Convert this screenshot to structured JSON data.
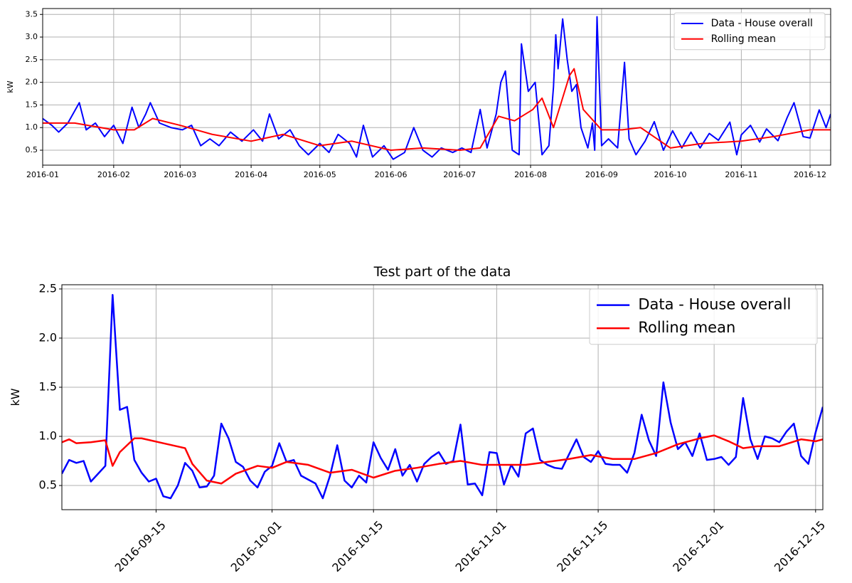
{
  "chart_data": [
    {
      "type": "line",
      "ylabel": "kW",
      "grid": true,
      "legend": "upper right",
      "xlim": [
        "2016-01-01",
        "2016-12-10"
      ],
      "ylim": [
        0.17,
        3.63
      ],
      "xticks": [
        {
          "value": "2016-01-01",
          "label": "2016-01"
        },
        {
          "value": "2016-02-01",
          "label": "2016-02"
        },
        {
          "value": "2016-03-01",
          "label": "2016-03"
        },
        {
          "value": "2016-04-01",
          "label": "2016-04"
        },
        {
          "value": "2016-05-01",
          "label": "2016-05"
        },
        {
          "value": "2016-06-01",
          "label": "2016-06"
        },
        {
          "value": "2016-07-01",
          "label": "2016-07"
        },
        {
          "value": "2016-08-01",
          "label": "2016-08"
        },
        {
          "value": "2016-09-01",
          "label": "2016-09"
        },
        {
          "value": "2016-10-01",
          "label": "2016-10"
        },
        {
          "value": "2016-11-01",
          "label": "2016-11"
        },
        {
          "value": "2016-12-01",
          "label": "2016-12"
        }
      ],
      "yticks": [
        0.5,
        {
          "value": 1,
          "label": "1.0"
        },
        1.5,
        {
          "value": 2,
          "label": "2.0"
        },
        2.5,
        {
          "value": 3,
          "label": "3.0"
        },
        3.5
      ],
      "series": [
        {
          "name": "Data - House overall",
          "color": "#0000ff",
          "x": [
            "2016-01-01",
            "2016-01-05",
            "2016-01-08",
            "2016-01-12",
            "2016-01-17",
            "2016-01-20",
            "2016-01-24",
            "2016-01-28",
            "2016-02-01",
            "2016-02-05",
            "2016-02-09",
            "2016-02-12",
            "2016-02-15",
            "2016-02-17",
            "2016-02-21",
            "2016-02-26",
            "2016-03-02",
            "2016-03-06",
            "2016-03-10",
            "2016-03-14",
            "2016-03-18",
            "2016-03-23",
            "2016-03-28",
            "2016-04-02",
            "2016-04-06",
            "2016-04-09",
            "2016-04-13",
            "2016-04-18",
            "2016-04-22",
            "2016-04-26",
            "2016-05-01",
            "2016-05-05",
            "2016-05-09",
            "2016-05-14",
            "2016-05-17",
            "2016-05-20",
            "2016-05-24",
            "2016-05-29",
            "2016-06-02",
            "2016-06-07",
            "2016-06-11",
            "2016-06-15",
            "2016-06-19",
            "2016-06-23",
            "2016-06-28",
            "2016-07-02",
            "2016-07-06",
            "2016-07-10",
            "2016-07-13",
            "2016-07-17",
            "2016-07-19",
            "2016-07-21",
            "2016-07-24",
            "2016-07-27",
            "2016-07-28",
            "2016-07-31",
            "2016-08-03",
            "2016-08-06",
            "2016-08-09",
            "2016-08-11",
            "2016-08-12",
            "2016-08-13",
            "2016-08-15",
            "2016-08-17",
            "2016-08-19",
            "2016-08-21",
            "2016-08-23",
            "2016-08-26",
            "2016-08-28",
            "2016-08-29",
            "2016-08-30",
            "2016-09-01",
            "2016-09-04",
            "2016-09-08",
            "2016-09-11",
            "2016-09-13",
            "2016-09-16",
            "2016-09-20",
            "2016-09-24",
            "2016-09-28",
            "2016-10-02",
            "2016-10-06",
            "2016-10-10",
            "2016-10-14",
            "2016-10-18",
            "2016-10-22",
            "2016-10-27",
            "2016-10-30",
            "2016-11-01",
            "2016-11-05",
            "2016-11-09",
            "2016-11-12",
            "2016-11-17",
            "2016-11-21",
            "2016-11-24",
            "2016-11-28",
            "2016-12-01",
            "2016-12-05",
            "2016-12-08",
            "2016-12-10"
          ],
          "values": [
            1.2,
            1.05,
            0.9,
            1.1,
            1.55,
            0.95,
            1.1,
            0.8,
            1.05,
            0.65,
            1.45,
            1.0,
            1.3,
            1.55,
            1.1,
            1.0,
            0.95,
            1.05,
            0.6,
            0.75,
            0.6,
            0.9,
            0.7,
            0.95,
            0.7,
            1.3,
            0.75,
            0.95,
            0.6,
            0.4,
            0.65,
            0.45,
            0.85,
            0.65,
            0.35,
            1.05,
            0.35,
            0.6,
            0.3,
            0.45,
            1.0,
            0.5,
            0.35,
            0.55,
            0.45,
            0.55,
            0.45,
            1.4,
            0.55,
            1.3,
            2.0,
            2.25,
            0.5,
            0.4,
            2.85,
            1.8,
            2.0,
            0.4,
            0.6,
            1.9,
            3.05,
            2.3,
            3.4,
            2.5,
            1.8,
            1.95,
            1.0,
            0.55,
            1.1,
            0.5,
            3.45,
            0.6,
            0.75,
            0.55,
            2.44,
            0.75,
            0.4,
            0.7,
            1.13,
            0.5,
            0.93,
            0.55,
            0.9,
            0.55,
            0.87,
            0.72,
            1.12,
            0.4,
            0.84,
            1.05,
            0.68,
            0.97,
            0.71,
            1.22,
            1.55,
            0.8,
            0.77,
            1.39,
            1.0,
            1.3
          ]
        },
        {
          "name": "Rolling mean",
          "color": "#ff0000",
          "x": [
            "2016-01-01",
            "2016-01-15",
            "2016-02-01",
            "2016-02-10",
            "2016-02-18",
            "2016-03-01",
            "2016-03-15",
            "2016-04-01",
            "2016-04-15",
            "2016-05-01",
            "2016-05-15",
            "2016-06-01",
            "2016-06-15",
            "2016-07-01",
            "2016-07-10",
            "2016-07-18",
            "2016-07-25",
            "2016-08-02",
            "2016-08-06",
            "2016-08-11",
            "2016-08-18",
            "2016-08-20",
            "2016-08-24",
            "2016-09-01",
            "2016-09-10",
            "2016-09-18",
            "2016-10-01",
            "2016-10-15",
            "2016-11-01",
            "2016-11-15",
            "2016-12-01",
            "2016-12-10"
          ],
          "values": [
            1.1,
            1.1,
            0.95,
            0.95,
            1.2,
            1.05,
            0.85,
            0.7,
            0.85,
            0.6,
            0.7,
            0.5,
            0.55,
            0.5,
            0.55,
            1.25,
            1.15,
            1.4,
            1.65,
            1.0,
            2.15,
            2.3,
            1.4,
            0.95,
            0.95,
            1.0,
            0.55,
            0.65,
            0.7,
            0.8,
            0.95,
            0.95
          ]
        }
      ]
    },
    {
      "type": "line",
      "title": "Test part of the data",
      "ylabel": "kW",
      "grid": true,
      "legend": "upper right",
      "xlim": [
        "2016-09-02",
        "2016-12-16"
      ],
      "ylim": [
        0.254,
        2.543
      ],
      "xticks": [
        "2016-09-15",
        "2016-10-01",
        "2016-10-15",
        "2016-11-01",
        "2016-11-15",
        "2016-12-01",
        "2016-12-15"
      ],
      "yticks": [
        0.5,
        {
          "value": 1,
          "label": "1.0"
        },
        1.5,
        {
          "value": 2,
          "label": "2.0"
        },
        2.5
      ],
      "series": [
        {
          "name": "Data - House overall",
          "color": "#0000ff",
          "x": [
            "2016-09-02",
            "2016-09-03",
            "2016-09-04",
            "2016-09-05",
            "2016-09-06",
            "2016-09-07",
            "2016-09-08",
            "2016-09-09",
            "2016-09-10",
            "2016-09-11",
            "2016-09-12",
            "2016-09-13",
            "2016-09-14",
            "2016-09-15",
            "2016-09-16",
            "2016-09-17",
            "2016-09-18",
            "2016-09-19",
            "2016-09-20",
            "2016-09-21",
            "2016-09-22",
            "2016-09-23",
            "2016-09-24",
            "2016-09-25",
            "2016-09-26",
            "2016-09-27",
            "2016-09-28",
            "2016-09-29",
            "2016-09-30",
            "2016-10-01",
            "2016-10-02",
            "2016-10-03",
            "2016-10-04",
            "2016-10-05",
            "2016-10-06",
            "2016-10-07",
            "2016-10-08",
            "2016-10-09",
            "2016-10-10",
            "2016-10-11",
            "2016-10-12",
            "2016-10-13",
            "2016-10-14",
            "2016-10-15",
            "2016-10-16",
            "2016-10-17",
            "2016-10-18",
            "2016-10-19",
            "2016-10-20",
            "2016-10-21",
            "2016-10-22",
            "2016-10-23",
            "2016-10-24",
            "2016-10-25",
            "2016-10-26",
            "2016-10-27",
            "2016-10-28",
            "2016-10-29",
            "2016-10-30",
            "2016-10-31",
            "2016-11-01",
            "2016-11-02",
            "2016-11-03",
            "2016-11-04",
            "2016-11-05",
            "2016-11-06",
            "2016-11-07",
            "2016-11-08",
            "2016-11-09",
            "2016-11-10",
            "2016-11-11",
            "2016-11-12",
            "2016-11-13",
            "2016-11-14",
            "2016-11-15",
            "2016-11-16",
            "2016-11-17",
            "2016-11-18",
            "2016-11-19",
            "2016-11-20",
            "2016-11-21",
            "2016-11-22",
            "2016-11-23",
            "2016-11-24",
            "2016-11-25",
            "2016-11-26",
            "2016-11-27",
            "2016-11-28",
            "2016-11-29",
            "2016-11-30",
            "2016-12-01",
            "2016-12-02",
            "2016-12-03",
            "2016-12-04",
            "2016-12-05",
            "2016-12-06",
            "2016-12-07",
            "2016-12-08",
            "2016-12-09",
            "2016-12-10",
            "2016-12-11",
            "2016-12-12",
            "2016-12-13",
            "2016-12-14",
            "2016-12-15",
            "2016-12-16"
          ],
          "values": [
            0.62,
            0.76,
            0.73,
            0.75,
            0.54,
            0.62,
            0.7,
            2.44,
            1.27,
            1.3,
            0.76,
            0.63,
            0.54,
            0.57,
            0.39,
            0.37,
            0.5,
            0.73,
            0.65,
            0.48,
            0.49,
            0.6,
            1.13,
            0.98,
            0.74,
            0.69,
            0.55,
            0.48,
            0.64,
            0.7,
            0.93,
            0.74,
            0.76,
            0.6,
            0.56,
            0.52,
            0.37,
            0.6,
            0.91,
            0.55,
            0.48,
            0.6,
            0.53,
            0.94,
            0.78,
            0.66,
            0.87,
            0.6,
            0.71,
            0.54,
            0.72,
            0.79,
            0.84,
            0.72,
            0.75,
            1.12,
            0.51,
            0.52,
            0.4,
            0.84,
            0.83,
            0.51,
            0.71,
            0.59,
            1.03,
            1.08,
            0.76,
            0.71,
            0.68,
            0.67,
            0.82,
            0.97,
            0.79,
            0.74,
            0.85,
            0.72,
            0.71,
            0.71,
            0.63,
            0.83,
            1.22,
            0.96,
            0.8,
            1.55,
            1.14,
            0.87,
            0.94,
            0.8,
            1.03,
            0.76,
            0.77,
            0.79,
            0.71,
            0.79,
            1.39,
            0.97,
            0.77,
            1.0,
            0.98,
            0.94,
            1.05,
            1.13,
            0.8,
            0.72,
            1.04,
            1.3
          ]
        },
        {
          "name": "Rolling mean",
          "color": "#ff0000",
          "x": [
            "2016-09-02",
            "2016-09-03",
            "2016-09-04",
            "2016-09-06",
            "2016-09-08",
            "2016-09-09",
            "2016-09-10",
            "2016-09-12",
            "2016-09-13",
            "2016-09-16",
            "2016-09-19",
            "2016-09-20",
            "2016-09-22",
            "2016-09-24",
            "2016-09-26",
            "2016-09-29",
            "2016-10-01",
            "2016-10-03",
            "2016-10-06",
            "2016-10-09",
            "2016-10-12",
            "2016-10-15",
            "2016-10-18",
            "2016-10-21",
            "2016-10-24",
            "2016-10-27",
            "2016-10-30",
            "2016-11-02",
            "2016-11-05",
            "2016-11-08",
            "2016-11-11",
            "2016-11-14",
            "2016-11-17",
            "2016-11-20",
            "2016-11-23",
            "2016-11-26",
            "2016-11-29",
            "2016-12-01",
            "2016-12-03",
            "2016-12-05",
            "2016-12-07",
            "2016-12-10",
            "2016-12-13",
            "2016-12-15",
            "2016-12-16"
          ],
          "values": [
            0.94,
            0.97,
            0.93,
            0.94,
            0.96,
            0.7,
            0.84,
            0.98,
            0.98,
            0.93,
            0.88,
            0.72,
            0.55,
            0.52,
            0.62,
            0.7,
            0.68,
            0.74,
            0.71,
            0.63,
            0.66,
            0.58,
            0.65,
            0.68,
            0.72,
            0.75,
            0.71,
            0.71,
            0.71,
            0.74,
            0.77,
            0.81,
            0.77,
            0.77,
            0.83,
            0.92,
            0.98,
            1.01,
            0.95,
            0.88,
            0.9,
            0.9,
            0.97,
            0.95,
            0.97
          ]
        }
      ]
    }
  ]
}
